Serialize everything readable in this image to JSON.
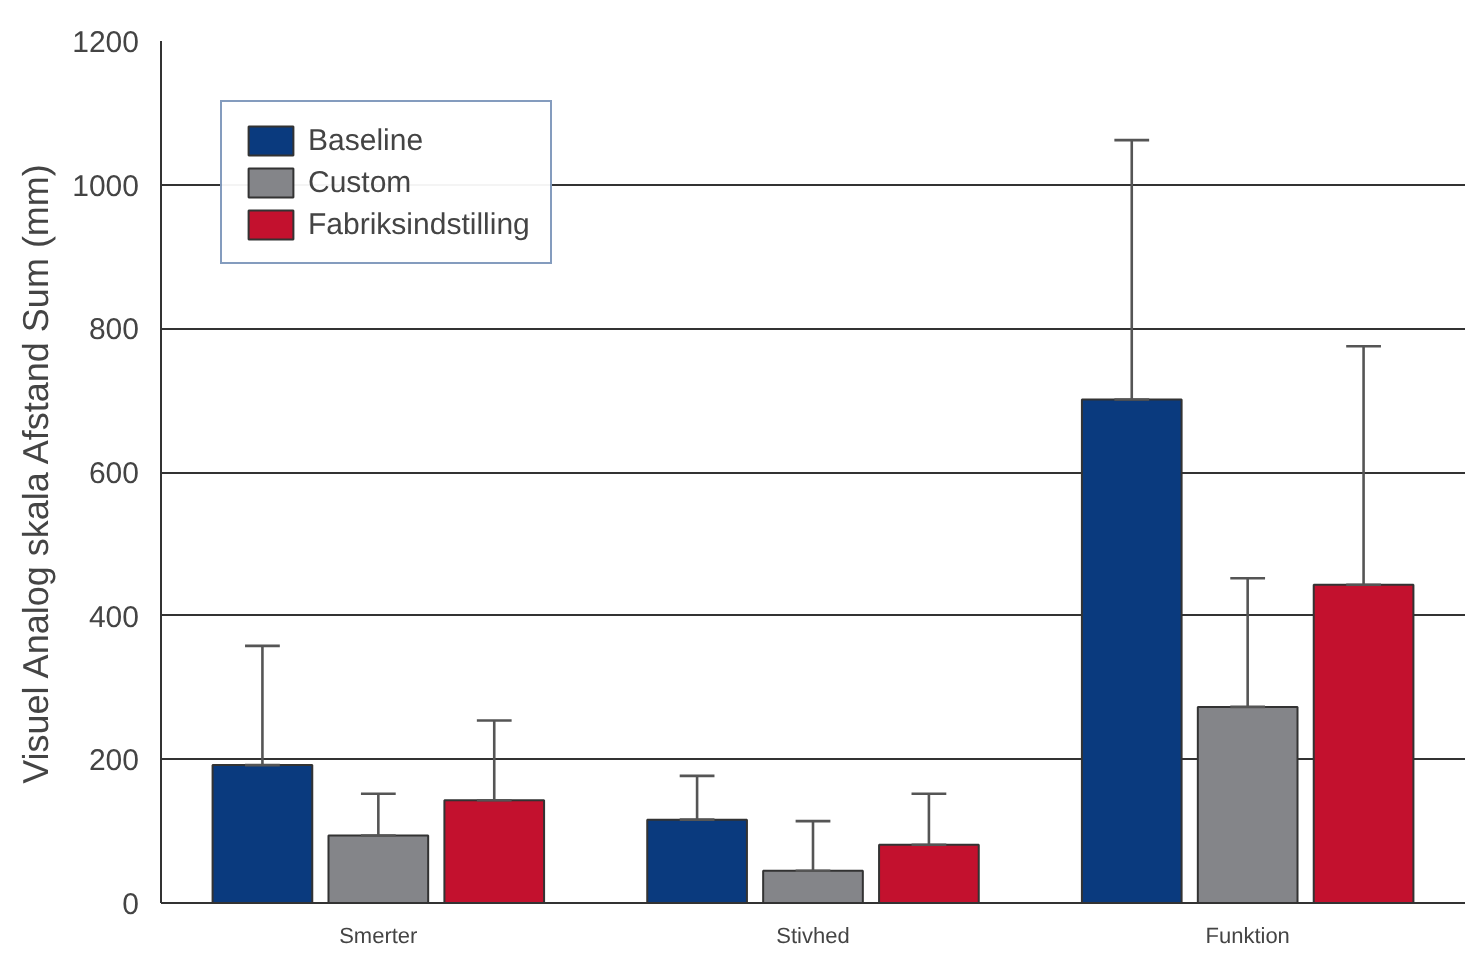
{
  "chart_data": {
    "type": "bar",
    "ylabel": "Visuel Analog skala Afstand Sum (mm)",
    "categories": [
      "Smerter",
      "Stivhed",
      "Funktion"
    ],
    "series": [
      {
        "name": "Baseline",
        "color": "#0a3a7e",
        "values": [
          192,
          116,
          701
        ],
        "errors": [
          [
            192,
            358
          ],
          [
            116,
            177
          ],
          [
            701,
            1062
          ]
        ]
      },
      {
        "name": "Custom",
        "color": "#848589",
        "values": [
          94,
          45,
          273
        ],
        "errors": [
          [
            94,
            152
          ],
          [
            45,
            114
          ],
          [
            273,
            452
          ]
        ]
      },
      {
        "name": "Fabriksindstilling",
        "color": "#c3112e",
        "values": [
          143,
          81,
          443
        ],
        "errors": [
          [
            143,
            254
          ],
          [
            81,
            152
          ],
          [
            443,
            775
          ]
        ]
      }
    ],
    "ylim": [
      0,
      1200
    ],
    "yticks": [
      0,
      200,
      400,
      600,
      800,
      1000,
      1200
    ],
    "grid": "y",
    "legend": "top left"
  }
}
